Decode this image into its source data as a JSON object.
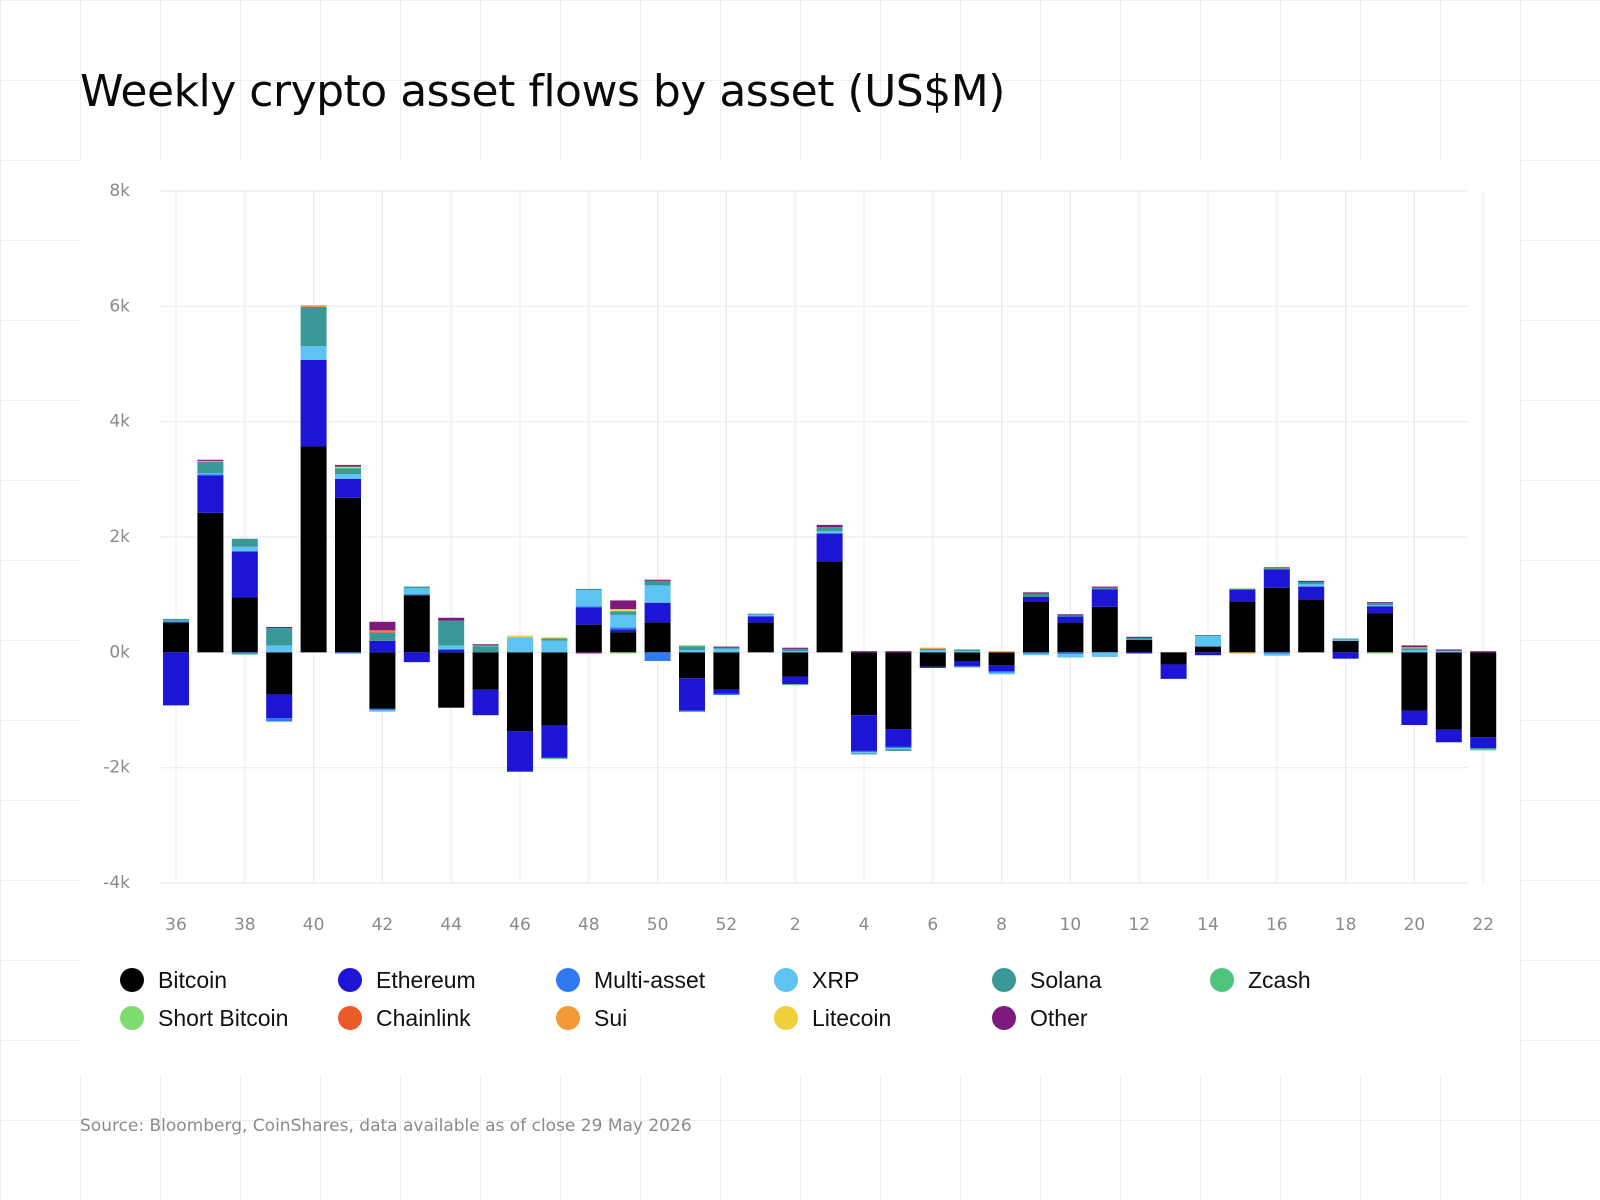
{
  "title": "Weekly crypto asset flows by asset (US$M)",
  "source": "Source: Bloomberg, CoinShares, data available as of close 29 May 2026",
  "chart_data": {
    "type": "bar",
    "stacked": true,
    "title": "Weekly crypto asset flows by asset (US$M)",
    "xlabel": "",
    "ylabel": "",
    "ylim": [
      -4000,
      8000
    ],
    "yticks": [
      -4000,
      -2000,
      0,
      2000,
      4000,
      6000,
      8000
    ],
    "ytick_labels": [
      "-4k",
      "-2k",
      "0k",
      "2k",
      "4k",
      "6k",
      "8k"
    ],
    "grid": true,
    "legend_position": "bottom",
    "categories": [
      "36",
      "37",
      "38",
      "39",
      "40",
      "41",
      "42",
      "43",
      "44",
      "45",
      "46",
      "47",
      "48",
      "49",
      "50",
      "51",
      "52",
      "1",
      "2",
      "3",
      "4",
      "5",
      "6",
      "7",
      "8",
      "9",
      "10",
      "11",
      "12",
      "13",
      "14",
      "15",
      "16",
      "17",
      "18",
      "19",
      "20",
      "21",
      "22"
    ],
    "xtick_labels": [
      "36",
      "",
      "38",
      "",
      "40",
      "",
      "42",
      "",
      "44",
      "",
      "46",
      "",
      "48",
      "",
      "50",
      "",
      "52",
      "",
      "2",
      "",
      "4",
      "",
      "6",
      "",
      "8",
      "",
      "10",
      "",
      "12",
      "",
      "14",
      "",
      "16",
      "",
      "18",
      "",
      "20",
      "",
      "22"
    ],
    "series": [
      {
        "name": "Bitcoin",
        "color": "#000000",
        "values": [
          520,
          2420,
          950,
          -730,
          3570,
          2680,
          -980,
          990,
          -960,
          -650,
          -1370,
          -1260,
          480,
          350,
          520,
          -450,
          -650,
          520,
          -420,
          1580,
          -1090,
          -1330,
          -250,
          -150,
          -220,
          880,
          520,
          790,
          220,
          -210,
          100,
          880,
          1120,
          920,
          200,
          680,
          -1010,
          -1340,
          -1470
        ]
      },
      {
        "name": "Ethereum",
        "color": "#1c15d6",
        "values": [
          -920,
          650,
          800,
          -410,
          1500,
          330,
          200,
          -170,
          40,
          -440,
          -700,
          -570,
          300,
          50,
          340,
          -560,
          -70,
          100,
          -130,
          480,
          -620,
          -310,
          -20,
          -90,
          -110,
          80,
          100,
          300,
          -20,
          -250,
          -50,
          210,
          320,
          220,
          -110,
          120,
          -250,
          -220,
          -190
        ]
      },
      {
        "name": "Multi-asset",
        "color": "#2f7af0",
        "values": [
          20,
          20,
          -20,
          -60,
          0,
          -20,
          -20,
          20,
          20,
          0,
          0,
          0,
          20,
          30,
          -150,
          -20,
          -20,
          10,
          0,
          0,
          -20,
          -20,
          0,
          -20,
          -20,
          -20,
          -30,
          0,
          0,
          0,
          0,
          0,
          -20,
          0,
          0,
          0,
          0,
          0,
          0
        ]
      },
      {
        "name": "XRP",
        "color": "#5cc3f2",
        "values": [
          10,
          20,
          80,
          120,
          240,
          80,
          -30,
          100,
          60,
          0,
          260,
          200,
          280,
          220,
          300,
          40,
          60,
          20,
          20,
          40,
          -20,
          -20,
          40,
          20,
          -30,
          -30,
          -60,
          -80,
          10,
          0,
          180,
          0,
          -40,
          40,
          20,
          20,
          40,
          20,
          0
        ]
      },
      {
        "name": "Solana",
        "color": "#3a9897",
        "values": [
          30,
          190,
          140,
          300,
          680,
          90,
          140,
          30,
          430,
          100,
          0,
          40,
          20,
          50,
          80,
          60,
          20,
          20,
          40,
          70,
          -20,
          -30,
          20,
          30,
          0,
          60,
          20,
          30,
          20,
          0,
          20,
          0,
          20,
          40,
          20,
          30,
          30,
          10,
          -20
        ]
      },
      {
        "name": "Zcash",
        "color": "#52c27f",
        "values": [
          0,
          0,
          -20,
          0,
          0,
          20,
          0,
          0,
          0,
          20,
          0,
          -20,
          0,
          20,
          0,
          20,
          0,
          0,
          -20,
          0,
          0,
          0,
          0,
          0,
          0,
          0,
          0,
          0,
          0,
          0,
          0,
          0,
          0,
          0,
          0,
          0,
          0,
          0,
          -20
        ]
      },
      {
        "name": "Short Bitcoin",
        "color": "#7fdc6e",
        "values": [
          0,
          0,
          0,
          0,
          0,
          20,
          0,
          0,
          0,
          0,
          0,
          0,
          0,
          -20,
          0,
          0,
          0,
          0,
          0,
          0,
          0,
          0,
          0,
          0,
          0,
          0,
          0,
          0,
          0,
          0,
          0,
          20,
          0,
          0,
          0,
          -20,
          0,
          0,
          0
        ]
      },
      {
        "name": "Chainlink",
        "color": "#ec5a2a",
        "values": [
          0,
          0,
          0,
          0,
          0,
          0,
          20,
          0,
          0,
          0,
          0,
          0,
          0,
          0,
          0,
          0,
          0,
          0,
          0,
          0,
          0,
          0,
          0,
          0,
          0,
          0,
          0,
          0,
          0,
          0,
          0,
          0,
          20,
          0,
          0,
          0,
          0,
          0,
          0
        ]
      },
      {
        "name": "Sui",
        "color": "#f49a35",
        "values": [
          0,
          20,
          0,
          0,
          30,
          0,
          20,
          0,
          0,
          0,
          0,
          0,
          0,
          0,
          0,
          0,
          0,
          0,
          0,
          0,
          0,
          0,
          20,
          0,
          20,
          0,
          0,
          0,
          0,
          0,
          0,
          -20,
          0,
          0,
          0,
          0,
          20,
          0,
          0
        ]
      },
      {
        "name": "Litecoin",
        "color": "#f0d13c",
        "values": [
          0,
          0,
          0,
          0,
          0,
          0,
          0,
          0,
          0,
          0,
          30,
          20,
          0,
          30,
          0,
          0,
          0,
          0,
          0,
          0,
          0,
          0,
          0,
          0,
          0,
          0,
          0,
          0,
          0,
          0,
          0,
          0,
          0,
          0,
          0,
          0,
          0,
          0,
          0
        ]
      },
      {
        "name": "Other",
        "color": "#7e1a7c",
        "values": [
          0,
          20,
          0,
          20,
          0,
          30,
          150,
          0,
          50,
          20,
          0,
          0,
          -20,
          150,
          20,
          0,
          20,
          0,
          20,
          40,
          20,
          20,
          0,
          0,
          0,
          20,
          20,
          20,
          20,
          0,
          0,
          0,
          0,
          20,
          0,
          20,
          30,
          20,
          20
        ]
      }
    ]
  }
}
